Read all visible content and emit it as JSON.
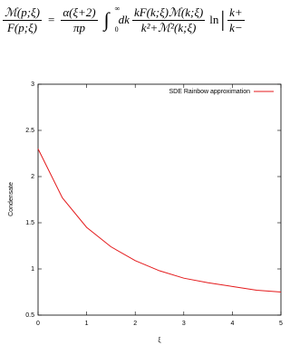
{
  "equation": {
    "lhs_num": "ℳ(p;ξ)",
    "lhs_den": "F(p;ξ)",
    "eq": "=",
    "c_num": "α(ξ+2)",
    "c_den": "πp",
    "int": "∫",
    "int_lo": "0",
    "int_hi": "∞",
    "dk": "dk",
    "f_num": "kF(k;ξ)ℳ(k;ξ)",
    "f_den": "k²+ℳ²(k;ξ)",
    "ln": "ln",
    "abs_num": "k+",
    "abs_den": "k−"
  },
  "chart_data": {
    "type": "line",
    "xlabel": "ξ",
    "ylabel": "Condensate",
    "x": [
      0,
      0.5,
      1,
      1.5,
      2,
      2.5,
      3,
      3.5,
      4,
      4.5,
      5
    ],
    "series": [
      {
        "name": "SDE Rainbow approximation",
        "color": "#e41a1c",
        "values": [
          2.3,
          1.77,
          1.45,
          1.24,
          1.09,
          0.98,
          0.9,
          0.85,
          0.81,
          0.77,
          0.75
        ]
      }
    ],
    "xlim": [
      0,
      5
    ],
    "ylim": [
      0.5,
      3
    ],
    "xticks": [
      0,
      1,
      2,
      3,
      4,
      5
    ],
    "yticks": [
      0.5,
      1,
      1.5,
      2,
      2.5,
      3
    ],
    "legend": "top-right"
  }
}
